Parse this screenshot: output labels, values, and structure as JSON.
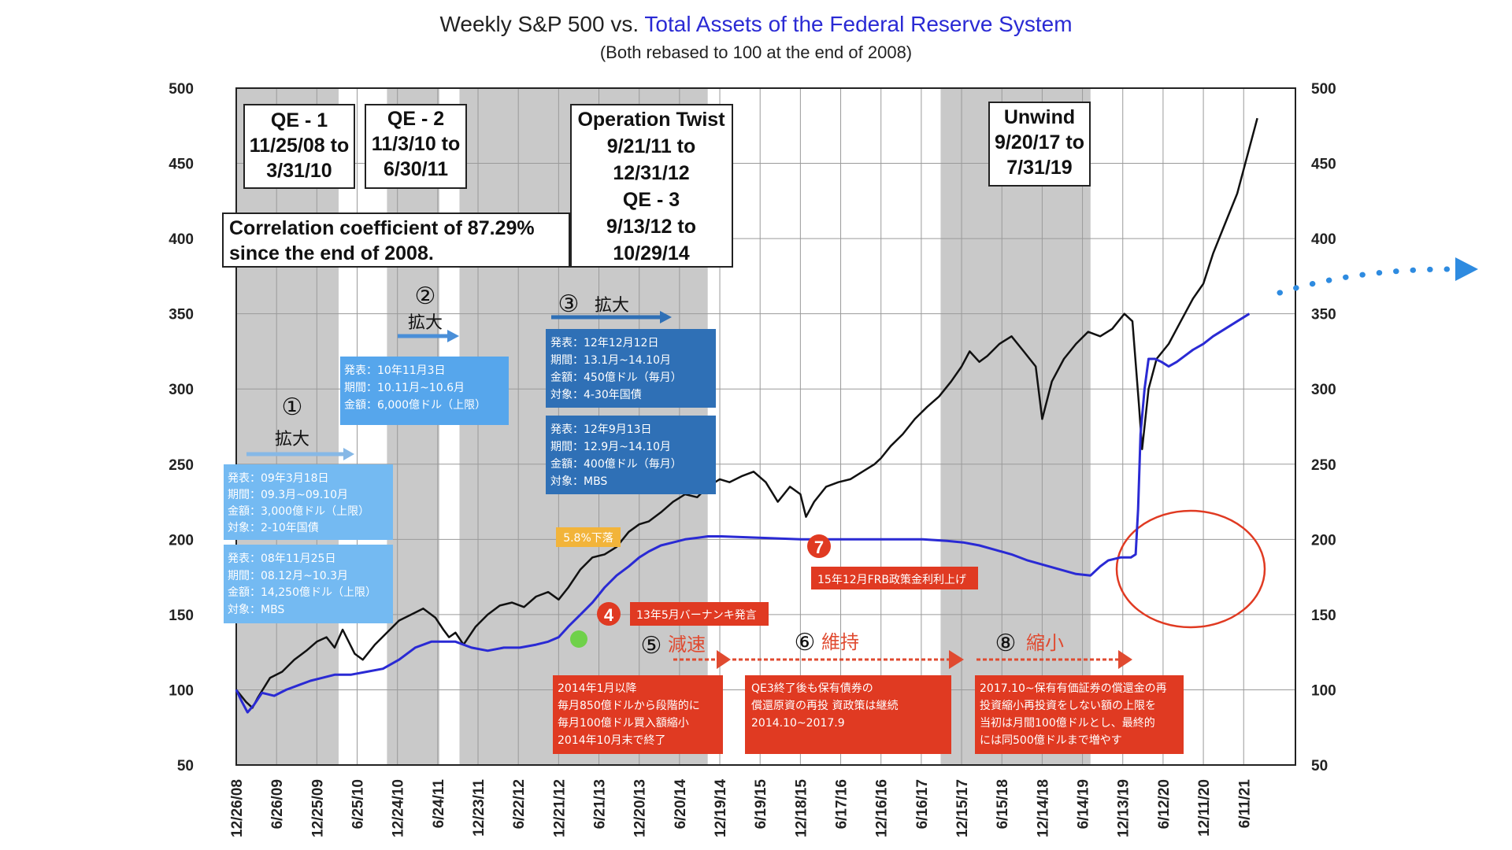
{
  "title": {
    "part1": "Weekly S&P 500 vs. ",
    "part2": "Total Assets of the Federal Reserve System",
    "subtitle": "(Both rebased to 100 at the end of 2008)"
  },
  "colors": {
    "shade": "#c9c9c9",
    "sp500": "#111111",
    "fed": "#2a2ad4",
    "light_blue_box": "#74baf2",
    "mid_blue_box": "#56a6ec",
    "dark_blue_box": "#2f70b6",
    "red_box": "#e03a22",
    "orange_box": "#f2b43a",
    "arrow_blue": "#4a8fd8",
    "arrow_red": "#e04a30",
    "circle_red": "#e03a22"
  },
  "chart_data": {
    "type": "line",
    "title": "Weekly S&P 500 vs. Total Assets of the Federal Reserve System",
    "subtitle": "(Both rebased to 100 at the end of 2008)",
    "ylim": [
      50,
      500
    ],
    "yticks": [
      50,
      100,
      150,
      200,
      250,
      300,
      350,
      400,
      450,
      500
    ],
    "xlim": [
      2008.98,
      2021.8
    ],
    "x_tick_labels": [
      "12/26/08",
      "6/26/09",
      "12/25/09",
      "6/25/10",
      "12/24/10",
      "6/24/11",
      "12/23/11",
      "6/22/12",
      "12/21/12",
      "6/21/13",
      "12/20/13",
      "6/20/14",
      "12/19/14",
      "6/19/15",
      "12/18/15",
      "6/17/16",
      "12/16/16",
      "6/16/17",
      "12/15/17",
      "6/15/18",
      "12/14/18",
      "6/14/19",
      "12/13/19",
      "6/12/20",
      "12/11/20",
      "6/11/21"
    ],
    "x_tick_values": [
      2008.98,
      2009.48,
      2009.98,
      2010.48,
      2010.98,
      2011.48,
      2011.98,
      2012.48,
      2012.98,
      2013.48,
      2013.98,
      2014.48,
      2014.98,
      2015.48,
      2015.98,
      2016.48,
      2016.98,
      2017.48,
      2017.98,
      2018.48,
      2018.98,
      2019.48,
      2019.98,
      2020.48,
      2020.98,
      2021.48
    ],
    "shaded_periods": [
      {
        "x0": 2008.98,
        "x1": 2010.25
      },
      {
        "x0": 2010.85,
        "x1": 2011.5
      },
      {
        "x0": 2011.75,
        "x1": 2014.83
      },
      {
        "x0": 2017.72,
        "x1": 2019.58
      }
    ],
    "series": [
      {
        "x": [
          2008.98,
          2009.1,
          2009.18,
          2009.25,
          2009.4,
          2009.55,
          2009.7,
          2009.85,
          2009.98,
          2010.1,
          2010.2,
          2010.3,
          2010.45,
          2010.55,
          2010.7,
          2010.85,
          2011.0,
          2011.15,
          2011.3,
          2011.45,
          2011.55,
          2011.62,
          2011.7,
          2011.8,
          2011.95,
          2012.1,
          2012.25,
          2012.4,
          2012.55,
          2012.7,
          2012.85,
          2012.98,
          2013.1,
          2013.25,
          2013.4,
          2013.55,
          2013.7,
          2013.85,
          2013.98,
          2014.1,
          2014.25,
          2014.4,
          2014.55,
          2014.7,
          2014.83,
          2014.98,
          2015.1,
          2015.25,
          2015.4,
          2015.55,
          2015.62,
          2015.7,
          2015.85,
          2015.98,
          2016.05,
          2016.15,
          2016.3,
          2016.45,
          2016.6,
          2016.75,
          2016.9,
          2016.98,
          2017.1,
          2017.25,
          2017.4,
          2017.55,
          2017.7,
          2017.85,
          2017.98,
          2018.08,
          2018.2,
          2018.3,
          2018.45,
          2018.6,
          2018.75,
          2018.9,
          2018.98,
          2019.1,
          2019.25,
          2019.4,
          2019.55,
          2019.7,
          2019.85,
          2020.0,
          2020.1,
          2020.18,
          2020.22,
          2020.3,
          2020.4,
          2020.55,
          2020.7,
          2020.85,
          2020.98,
          2021.1,
          2021.25,
          2021.4,
          2021.55,
          2021.65
        ],
        "y": [
          100,
          92,
          88,
          95,
          108,
          112,
          120,
          126,
          132,
          135,
          128,
          140,
          124,
          120,
          130,
          138,
          146,
          150,
          154,
          148,
          140,
          135,
          138,
          130,
          142,
          150,
          156,
          158,
          155,
          162,
          165,
          160,
          168,
          180,
          188,
          190,
          195,
          205,
          210,
          212,
          218,
          225,
          230,
          228,
          235,
          240,
          238,
          242,
          245,
          238,
          232,
          225,
          235,
          230,
          215,
          225,
          235,
          238,
          240,
          245,
          250,
          254,
          262,
          270,
          280,
          288,
          295,
          305,
          315,
          325,
          318,
          322,
          330,
          335,
          325,
          315,
          280,
          305,
          320,
          330,
          338,
          335,
          340,
          350,
          345,
          290,
          260,
          300,
          320,
          330,
          345,
          360,
          370,
          390,
          410,
          430,
          460,
          480
        ]
      },
      {
        "x": [
          2008.98,
          2009.05,
          2009.12,
          2009.2,
          2009.3,
          2009.45,
          2009.6,
          2009.75,
          2009.9,
          2010.05,
          2010.2,
          2010.4,
          2010.6,
          2010.8,
          2011.0,
          2011.2,
          2011.4,
          2011.55,
          2011.7,
          2011.9,
          2012.1,
          2012.3,
          2012.5,
          2012.7,
          2012.85,
          2012.98,
          2013.1,
          2013.25,
          2013.4,
          2013.55,
          2013.7,
          2013.85,
          2013.98,
          2014.1,
          2014.25,
          2014.4,
          2014.55,
          2014.7,
          2014.83,
          2015.0,
          2015.5,
          2016.0,
          2016.5,
          2017.0,
          2017.5,
          2017.8,
          2018.0,
          2018.2,
          2018.4,
          2018.6,
          2018.8,
          2019.0,
          2019.2,
          2019.4,
          2019.58,
          2019.7,
          2019.8,
          2019.95,
          2020.08,
          2020.14,
          2020.17,
          2020.2,
          2020.25,
          2020.3,
          2020.38,
          2020.46,
          2020.55,
          2020.65,
          2020.75,
          2020.85,
          2020.98,
          2021.1,
          2021.25,
          2021.4,
          2021.55
        ],
        "y": [
          100,
          92,
          85,
          90,
          98,
          96,
          100,
          103,
          106,
          108,
          110,
          110,
          112,
          114,
          120,
          128,
          132,
          132,
          132,
          128,
          126,
          128,
          128,
          130,
          132,
          135,
          142,
          150,
          158,
          168,
          176,
          182,
          188,
          192,
          196,
          198,
          200,
          201,
          202,
          202,
          201,
          200,
          200,
          200,
          200,
          199,
          198,
          196,
          193,
          190,
          186,
          183,
          180,
          177,
          176,
          182,
          186,
          188,
          188,
          190,
          220,
          270,
          300,
          320,
          320,
          318,
          315,
          318,
          322,
          326,
          330,
          335,
          340,
          345,
          350
        ]
      }
    ],
    "annotations": [
      {
        "label": "QE - 1",
        "text": [
          "11/25/08 to",
          "3/31/10"
        ]
      },
      {
        "label": "QE - 2",
        "text": [
          "11/3/10 to",
          "6/30/11"
        ]
      },
      {
        "label": "Operation Twist",
        "text": [
          "9/21/11 to",
          "12/31/12",
          "QE - 3",
          "9/13/12 to",
          "10/29/14"
        ]
      },
      {
        "label": "Unwind",
        "text": [
          "9/20/17 to",
          "7/31/19"
        ]
      },
      {
        "label": "Correlation coefficient of 87.29%",
        "text": [
          "since the end of 2008."
        ]
      }
    ]
  },
  "boxes": {
    "qe1": {
      "title": "QE - 1",
      "line1": "11/25/08 to",
      "line2": "3/31/10"
    },
    "qe2": {
      "title": "QE - 2",
      "line1": "11/3/10 to",
      "line2": "6/30/11"
    },
    "twist": {
      "title": "Operation Twist",
      "line1": "9/21/11 to",
      "line2": "12/31/12",
      "line3": "QE - 3",
      "line4": "9/13/12 to",
      "line5": "10/29/14"
    },
    "unwind": {
      "title": "Unwind",
      "line1": "9/20/17 to",
      "line2": "7/31/19"
    },
    "corr": {
      "line1": "Correlation coefficient of 87.29%",
      "line2": "since the end of 2008."
    }
  },
  "markers": {
    "m1": {
      "num": "①",
      "label": "拡大"
    },
    "m2": {
      "num": "②",
      "label": "拡大"
    },
    "m3": {
      "num": "③",
      "label": "拡大"
    },
    "m4": {
      "num": "4"
    },
    "m5": {
      "num": "⑤",
      "label": "減速"
    },
    "m6": {
      "num": "⑥",
      "label": "維持"
    },
    "m7": {
      "num": "7"
    },
    "m8": {
      "num": "⑧",
      "label": "縮小"
    }
  },
  "info": {
    "qe2_box": [
      "発表：10年11月3日",
      "期間：10.11月~10.6月",
      "金額：6,000億ドル（上限）"
    ],
    "qe1_upper": [
      "発表：09年3月18日",
      "期間：09.3月~09.10月",
      "金額：3,000億ドル（上限）",
      "対象：2-10年国債"
    ],
    "qe1_lower": [
      "発表：08年11月25日",
      "期間：08.12月~10.3月",
      "金額：14,250億ドル（上限）",
      "対象：MBS"
    ],
    "qe3_upper": [
      "発表：12年12月12日",
      "期間：13.1月~14.10月",
      "金額：450億ドル（毎月）",
      "対象：4-30年国債"
    ],
    "qe3_lower": [
      "発表：12年9月13日",
      "期間：12.9月~14.10月",
      "金額：400億ドル（毎月）",
      "対象：MBS"
    ],
    "drop": "5.8%下落",
    "bernanke": "13年5月バーナンキ発言",
    "frb_hike": "15年12月FRB政策金利利上げ",
    "taper": [
      "2014年1月以降",
      "毎月850億ドルから段階的に",
      "毎月100億ドル買入額縮小",
      "2014年10月末で終了"
    ],
    "maintain": [
      "QE3終了後も保有債券の",
      "償還原資の再投 資政策は継続",
      "2014.10~2017.9"
    ],
    "shrink": [
      "2017.10~保有有価証券の償還金の再",
      "投資縮小再投資をしない額の上限を",
      "当初は月間100億ドルとし、最終的",
      "には同500億ドルまで増やす"
    ]
  }
}
